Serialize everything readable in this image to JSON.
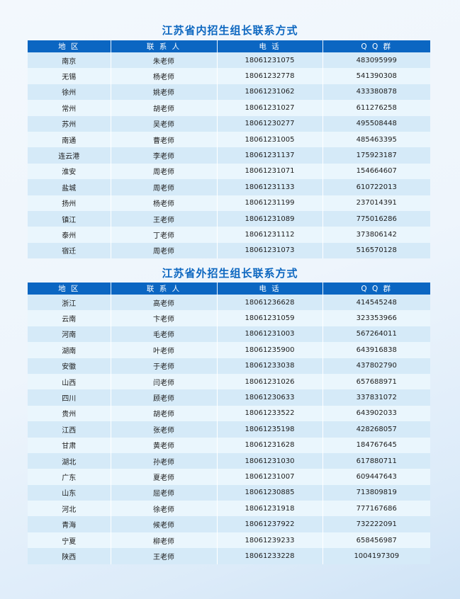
{
  "headers": [
    "地 区",
    "联 系 人",
    "电 话",
    "Q Q 群"
  ],
  "sections": [
    {
      "title": "江苏省内招生组长联系方式",
      "rows": [
        [
          "南京",
          "朱老师",
          "18061231075",
          "483095999"
        ],
        [
          "无锡",
          "杨老师",
          "18061232778",
          "541390308"
        ],
        [
          "徐州",
          "姚老师",
          "18061231062",
          "433380878"
        ],
        [
          "常州",
          "胡老师",
          "18061231027",
          "611276258"
        ],
        [
          "苏州",
          "吴老师",
          "18061230277",
          "495508448"
        ],
        [
          "南通",
          "曹老师",
          "18061231005",
          "485463395"
        ],
        [
          "连云港",
          "李老师",
          "18061231137",
          "175923187"
        ],
        [
          "淮安",
          "周老师",
          "18061231071",
          "154664607"
        ],
        [
          "盐城",
          "周老师",
          "18061231133",
          "610722013"
        ],
        [
          "扬州",
          "杨老师",
          "18061231199",
          "237014391"
        ],
        [
          "镇江",
          "王老师",
          "18061231089",
          "775016286"
        ],
        [
          "泰州",
          "丁老师",
          "18061231112",
          "373806142"
        ],
        [
          "宿迁",
          "周老师",
          "18061231073",
          "516570128"
        ]
      ]
    },
    {
      "title": "江苏省外招生组长联系方式",
      "rows": [
        [
          "浙江",
          "高老师",
          "18061236628",
          "414545248"
        ],
        [
          "云南",
          "卞老师",
          "18061231059",
          "323353966"
        ],
        [
          "河南",
          "毛老师",
          "18061231003",
          "567264011"
        ],
        [
          "湖南",
          "叶老师",
          "18061235900",
          "643916838"
        ],
        [
          "安徽",
          "于老师",
          "18061233038",
          "437802790"
        ],
        [
          "山西",
          "闫老师",
          "18061231026",
          "657688971"
        ],
        [
          "四川",
          "顾老师",
          "18061230633",
          "337831072"
        ],
        [
          "贵州",
          "胡老师",
          "18061233522",
          "643902033"
        ],
        [
          "江西",
          "张老师",
          "18061235198",
          "428268057"
        ],
        [
          "甘肃",
          "黄老师",
          "18061231628",
          "184767645"
        ],
        [
          "湖北",
          "孙老师",
          "18061231030",
          "617880711"
        ],
        [
          "广东",
          "夏老师",
          "18061231007",
          "609447643"
        ],
        [
          "山东",
          "屈老师",
          "18061230885",
          "713809819"
        ],
        [
          "河北",
          "徐老师",
          "18061231918",
          "777167686"
        ],
        [
          "青海",
          "候老师",
          "18061237922",
          "732222091"
        ],
        [
          "宁夏",
          "柳老师",
          "18061239233",
          "658456987"
        ],
        [
          "陕西",
          "王老师",
          "18061233228",
          "1004197309"
        ]
      ]
    }
  ],
  "colors": {
    "header": "#0b66c2",
    "title": "#0d67c0",
    "row_dark": "#d5eaf8",
    "row_light": "#eaf6fd"
  }
}
